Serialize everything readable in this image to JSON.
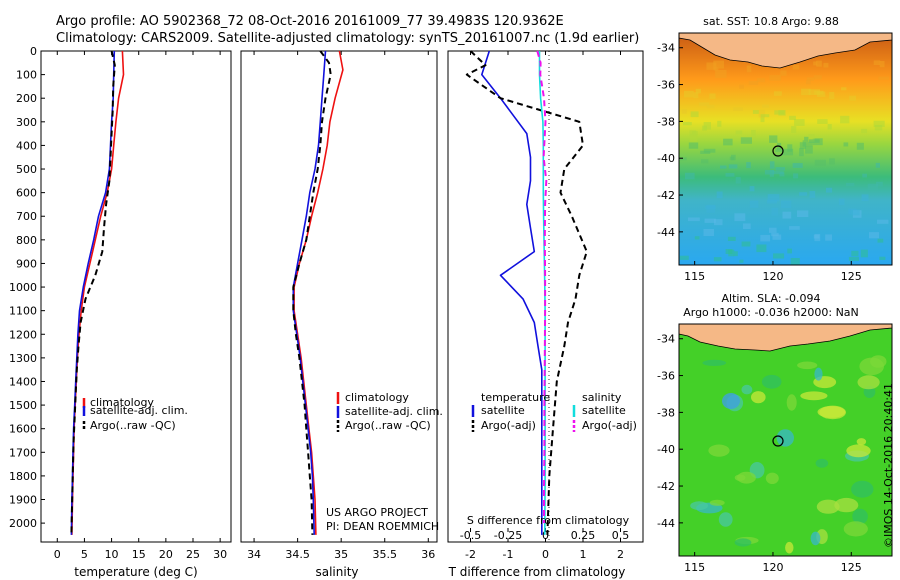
{
  "header": {
    "line1": "Argo profile: AO 5902368_72 08-Oct-2016 20161009_77 39.4983S 120.9362E",
    "line2": "Climatology: CARS2009. Satellite-adjusted climatology: synTS_20161007.nc (1.9d earlier)"
  },
  "colors": {
    "climatology": "#ee1111",
    "satellite": "#1111dd",
    "argo": "#000000",
    "satellite_salinity": "#11dddd",
    "argo_salinity": "#ee11ee",
    "land": "#f5b886"
  },
  "credits": {
    "project_line1": "US ARGO PROJECT",
    "project_line2": "PI: DEAN ROEMMICH",
    "imos": "©IMOS 14-Oct-2016 20:40:41"
  },
  "maps": {
    "sst": {
      "title": "sat. SST: 10.8 Argo: 9.88",
      "xticks": [
        "115",
        "120",
        "125"
      ],
      "yticks": [
        "-34",
        "-36",
        "-38",
        "-40",
        "-42",
        "-44"
      ]
    },
    "sla": {
      "title1": "Altim. SLA: -0.094",
      "title2": "Argo h1000: -0.036 h2000: NaN",
      "xticks": [
        "115",
        "120",
        "125"
      ],
      "yticks": [
        "-34",
        "-36",
        "-38",
        "-40",
        "-42",
        "-44"
      ]
    }
  },
  "chart_data": [
    {
      "type": "line",
      "title": "",
      "xlabel": "temperature (deg C)",
      "ylabel": "",
      "xlim": [
        -3,
        32
      ],
      "ylim": [
        2080,
        0
      ],
      "y_inverted": true,
      "xticks": [
        "0",
        "5",
        "10",
        "15",
        "20",
        "25",
        "30"
      ],
      "yticks": [
        "0",
        "100",
        "200",
        "300",
        "400",
        "500",
        "600",
        "700",
        "800",
        "900",
        "1000",
        "1100",
        "1200",
        "1300",
        "1400",
        "1500",
        "1600",
        "1700",
        "1800",
        "1900",
        "2000"
      ],
      "legend": [
        "climatology",
        "satellite-adj. clim.",
        "Argo(..raw -QC)"
      ],
      "series": [
        {
          "name": "climatology",
          "color": "#ee1111",
          "dash": false,
          "points": [
            [
              12.0,
              0
            ],
            [
              12.2,
              100
            ],
            [
              11.3,
              200
            ],
            [
              10.8,
              300
            ],
            [
              10.4,
              400
            ],
            [
              10.0,
              500
            ],
            [
              9.2,
              600
            ],
            [
              8.0,
              700
            ],
            [
              7.0,
              800
            ],
            [
              6.0,
              900
            ],
            [
              5.0,
              1000
            ],
            [
              4.4,
              1100
            ],
            [
              4.0,
              1200
            ],
            [
              3.7,
              1300
            ],
            [
              3.5,
              1400
            ],
            [
              3.3,
              1500
            ],
            [
              3.1,
              1600
            ],
            [
              3.0,
              1700
            ],
            [
              2.9,
              1800
            ],
            [
              2.8,
              1900
            ],
            [
              2.7,
              2050
            ]
          ]
        },
        {
          "name": "satellite-adj. clim.",
          "color": "#1111dd",
          "dash": false,
          "points": [
            [
              10.5,
              0
            ],
            [
              10.4,
              100
            ],
            [
              10.3,
              200
            ],
            [
              10.0,
              300
            ],
            [
              9.8,
              400
            ],
            [
              9.6,
              500
            ],
            [
              8.9,
              600
            ],
            [
              7.6,
              700
            ],
            [
              6.7,
              800
            ],
            [
              5.7,
              900
            ],
            [
              4.8,
              1000
            ],
            [
              4.1,
              1100
            ],
            [
              3.8,
              1200
            ],
            [
              3.6,
              1300
            ],
            [
              3.4,
              1400
            ],
            [
              3.2,
              1500
            ],
            [
              3.0,
              1600
            ],
            [
              2.9,
              1700
            ],
            [
              2.8,
              1800
            ],
            [
              2.7,
              1900
            ],
            [
              2.6,
              2050
            ]
          ]
        },
        {
          "name": "Argo(..raw -QC)",
          "color": "#000000",
          "dash": true,
          "points": [
            [
              10.0,
              0
            ],
            [
              10.6,
              60
            ],
            [
              10.3,
              150
            ],
            [
              10.2,
              250
            ],
            [
              10.0,
              350
            ],
            [
              9.8,
              450
            ],
            [
              9.6,
              550
            ],
            [
              9.0,
              650
            ],
            [
              8.6,
              750
            ],
            [
              8.3,
              850
            ],
            [
              7.0,
              950
            ],
            [
              5.2,
              1050
            ],
            [
              4.3,
              1150
            ],
            [
              3.9,
              1250
            ],
            [
              3.6,
              1350
            ],
            [
              3.4,
              1450
            ],
            [
              3.2,
              1550
            ],
            [
              3.0,
              1650
            ],
            [
              2.9,
              1750
            ],
            [
              2.8,
              1850
            ],
            [
              2.7,
              1950
            ],
            [
              2.6,
              2050
            ]
          ]
        }
      ]
    },
    {
      "type": "line",
      "title": "",
      "xlabel": "salinity",
      "ylabel": "",
      "xlim": [
        33.85,
        36.1
      ],
      "ylim": [
        2080,
        0
      ],
      "y_inverted": true,
      "xticks": [
        "34",
        "34.5",
        "35",
        "35.5",
        "36"
      ],
      "yticks": [],
      "legend": [
        "climatology",
        "satellite-adj. clim.",
        "Argo(..raw -QC)"
      ],
      "series": [
        {
          "name": "climatology",
          "color": "#ee1111",
          "dash": false,
          "points": [
            [
              34.98,
              0
            ],
            [
              35.02,
              80
            ],
            [
              34.93,
              200
            ],
            [
              34.87,
              300
            ],
            [
              34.84,
              400
            ],
            [
              34.79,
              500
            ],
            [
              34.73,
              600
            ],
            [
              34.66,
              700
            ],
            [
              34.6,
              800
            ],
            [
              34.52,
              900
            ],
            [
              34.46,
              1000
            ],
            [
              34.46,
              1100
            ],
            [
              34.5,
              1200
            ],
            [
              34.54,
              1300
            ],
            [
              34.57,
              1400
            ],
            [
              34.6,
              1500
            ],
            [
              34.63,
              1600
            ],
            [
              34.66,
              1700
            ],
            [
              34.68,
              1800
            ],
            [
              34.7,
              1900
            ],
            [
              34.71,
              2050
            ]
          ]
        },
        {
          "name": "satellite-adj. clim.",
          "color": "#1111dd",
          "dash": false,
          "points": [
            [
              34.82,
              0
            ],
            [
              34.8,
              100
            ],
            [
              34.78,
              200
            ],
            [
              34.76,
              300
            ],
            [
              34.74,
              400
            ],
            [
              34.7,
              500
            ],
            [
              34.64,
              600
            ],
            [
              34.6,
              700
            ],
            [
              34.55,
              800
            ],
            [
              34.5,
              900
            ],
            [
              34.45,
              1000
            ],
            [
              34.45,
              1100
            ],
            [
              34.49,
              1200
            ],
            [
              34.53,
              1300
            ],
            [
              34.56,
              1400
            ],
            [
              34.59,
              1500
            ],
            [
              34.62,
              1600
            ],
            [
              34.65,
              1700
            ],
            [
              34.67,
              1800
            ],
            [
              34.68,
              1900
            ],
            [
              34.69,
              2050
            ]
          ]
        },
        {
          "name": "Argo(..raw -QC)",
          "color": "#000000",
          "dash": true,
          "points": [
            [
              34.76,
              0
            ],
            [
              34.86,
              50
            ],
            [
              34.88,
              100
            ],
            [
              34.82,
              200
            ],
            [
              34.78,
              300
            ],
            [
              34.76,
              400
            ],
            [
              34.73,
              500
            ],
            [
              34.68,
              600
            ],
            [
              34.64,
              700
            ],
            [
              34.6,
              800
            ],
            [
              34.52,
              900
            ],
            [
              34.45,
              1000
            ],
            [
              34.45,
              1100
            ],
            [
              34.48,
              1200
            ],
            [
              34.52,
              1300
            ],
            [
              34.55,
              1400
            ],
            [
              34.58,
              1500
            ],
            [
              34.6,
              1600
            ],
            [
              34.62,
              1700
            ],
            [
              34.64,
              1800
            ],
            [
              34.66,
              1900
            ],
            [
              34.67,
              2050
            ]
          ]
        }
      ]
    },
    {
      "type": "line",
      "title": "",
      "xlabel": "T difference from climatology",
      "xlabel_top": "S difference from climatology",
      "ylabel": "",
      "xlim": [
        -2.6,
        2.6
      ],
      "xlim_top": [
        -0.65,
        0.65
      ],
      "ylim": [
        2080,
        0
      ],
      "y_inverted": true,
      "xticks": [
        "-2",
        "-1",
        "0",
        "1",
        "2"
      ],
      "xticks_top": [
        "-0.5",
        "-0.25",
        "0",
        "0.25",
        "0.5"
      ],
      "yticks": [],
      "legend_titles": [
        "temperature",
        "salinity"
      ],
      "legend": [
        "satellite",
        "Argo(-adj)",
        "satellite",
        "Argo(-adj)"
      ],
      "series": [
        {
          "name": "satellite",
          "group": "temperature",
          "color": "#1111dd",
          "dash": false,
          "points": [
            [
              -1.5,
              0
            ],
            [
              -1.7,
              100
            ],
            [
              -1.2,
              200
            ],
            [
              -0.5,
              350
            ],
            [
              -0.4,
              450
            ],
            [
              -0.4,
              550
            ],
            [
              -0.5,
              650
            ],
            [
              -0.4,
              750
            ],
            [
              -0.3,
              850
            ],
            [
              -1.2,
              950
            ],
            [
              -0.6,
              1050
            ],
            [
              -0.3,
              1150
            ],
            [
              -0.2,
              1250
            ],
            [
              -0.1,
              1350
            ],
            [
              -0.1,
              1500
            ],
            [
              -0.1,
              1700
            ],
            [
              -0.1,
              1900
            ],
            [
              -0.1,
              2050
            ]
          ]
        },
        {
          "name": "Argo(-adj)",
          "group": "temperature",
          "color": "#000000",
          "dash": true,
          "points": [
            [
              -2.0,
              0
            ],
            [
              -1.6,
              60
            ],
            [
              -2.1,
              100
            ],
            [
              -1.2,
              200
            ],
            [
              0.9,
              300
            ],
            [
              1.0,
              400
            ],
            [
              0.5,
              500
            ],
            [
              0.4,
              600
            ],
            [
              0.7,
              700
            ],
            [
              1.1,
              850
            ],
            [
              0.9,
              950
            ],
            [
              0.8,
              1050
            ],
            [
              0.6,
              1150
            ],
            [
              0.5,
              1250
            ],
            [
              0.3,
              1400
            ],
            [
              0.2,
              1600
            ],
            [
              0.1,
              1800
            ],
            [
              0.05,
              2050
            ]
          ]
        },
        {
          "name": "satellite",
          "group": "salinity",
          "color": "#11dddd",
          "dash": false,
          "points": [
            [
              -0.16,
              0
            ],
            [
              -0.16,
              100
            ],
            [
              -0.13,
              200
            ],
            [
              -0.07,
              300
            ],
            [
              -0.06,
              400
            ],
            [
              -0.06,
              500
            ],
            [
              -0.06,
              600
            ],
            [
              -0.05,
              700
            ],
            [
              -0.04,
              800
            ],
            [
              -0.03,
              900
            ],
            [
              -0.02,
              1000
            ],
            [
              -0.01,
              1100
            ],
            [
              -0.01,
              1200
            ],
            [
              -0.01,
              1400
            ],
            [
              -0.01,
              1600
            ],
            [
              -0.01,
              1800
            ],
            [
              -0.02,
              2050
            ]
          ]
        },
        {
          "name": "Argo(-adj)",
          "group": "salinity",
          "color": "#ee11ee",
          "dash": true,
          "points": [
            [
              -0.22,
              0
            ],
            [
              -0.13,
              50
            ],
            [
              -0.14,
              100
            ],
            [
              -0.04,
              200
            ],
            [
              0.0,
              300
            ],
            [
              -0.05,
              450
            ],
            [
              0.02,
              550
            ],
            [
              -0.01,
              650
            ],
            [
              -0.02,
              800
            ],
            [
              -0.01,
              950
            ],
            [
              -0.01,
              1100
            ],
            [
              -0.02,
              1300
            ],
            [
              -0.03,
              1500
            ],
            [
              -0.03,
              1700
            ],
            [
              -0.04,
              1850
            ],
            [
              -0.04,
              2000
            ]
          ]
        }
      ]
    }
  ]
}
